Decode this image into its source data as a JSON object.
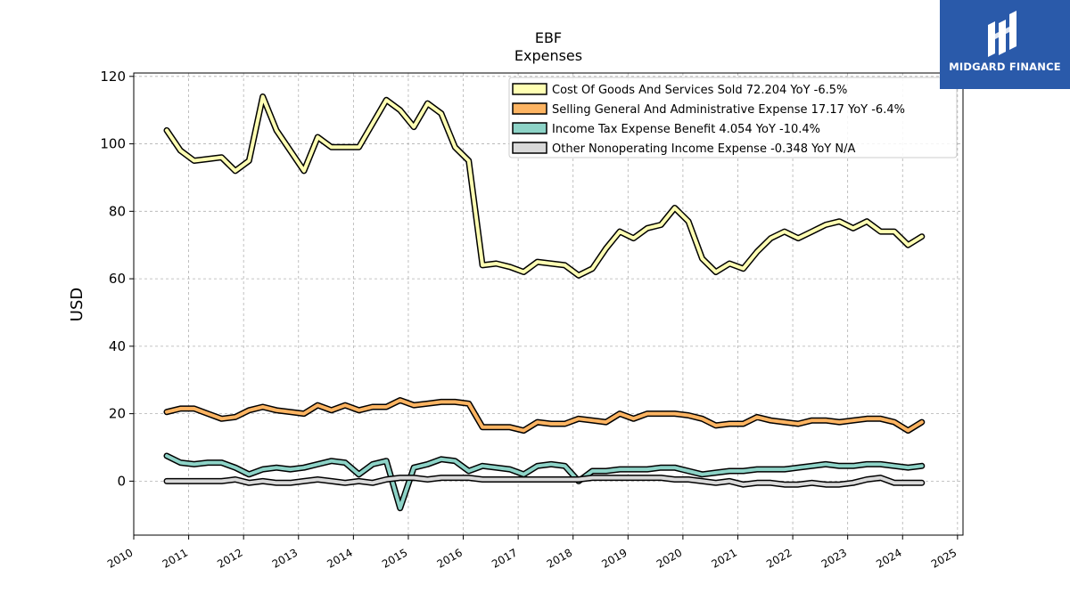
{
  "chart_data": {
    "type": "line",
    "title": "EBF",
    "subtitle": "Expenses",
    "xlabel": "",
    "ylabel": "USD",
    "xlim": [
      2010.0,
      2025.1
    ],
    "ylim": [
      -16,
      121
    ],
    "x_ticks": [
      "2010",
      "2011",
      "2012",
      "2013",
      "2014",
      "2015",
      "2016",
      "2017",
      "2018",
      "2019",
      "2020",
      "2021",
      "2022",
      "2023",
      "2024",
      "2025"
    ],
    "y_ticks": [
      "0",
      "20",
      "40",
      "60",
      "80",
      "100",
      "120"
    ],
    "grid": true,
    "legend_position": "top-right",
    "x": [
      2010.6,
      2010.85,
      2011.1,
      2011.35,
      2011.6,
      2011.85,
      2012.1,
      2012.35,
      2012.6,
      2012.85,
      2013.1,
      2013.35,
      2013.6,
      2013.85,
      2014.1,
      2014.35,
      2014.6,
      2014.85,
      2015.1,
      2015.35,
      2015.6,
      2015.85,
      2016.1,
      2016.35,
      2016.6,
      2016.85,
      2017.1,
      2017.35,
      2017.6,
      2017.85,
      2018.1,
      2018.35,
      2018.6,
      2018.85,
      2019.1,
      2019.35,
      2019.6,
      2019.85,
      2020.1,
      2020.35,
      2020.6,
      2020.85,
      2021.1,
      2021.35,
      2021.6,
      2021.85,
      2022.1,
      2022.35,
      2022.6,
      2022.85,
      2023.1,
      2023.35,
      2023.6,
      2023.85,
      2024.1,
      2024.35
    ],
    "series": [
      {
        "name": "Cost Of Goods And Services Sold  72.204 YoY -6.5%",
        "color": "#ffffb3",
        "values": [
          104,
          98,
          95,
          95.5,
          96,
          92,
          95,
          114,
          104,
          98,
          92,
          102,
          99,
          99,
          99,
          106,
          113,
          110,
          105,
          112,
          109,
          99,
          95,
          64,
          64.5,
          63.5,
          62,
          65,
          64.5,
          64,
          61,
          63,
          69,
          74,
          72,
          75,
          76,
          81,
          77,
          66,
          62,
          64.5,
          63,
          68,
          72,
          74,
          72,
          74,
          76,
          77,
          75,
          77,
          74,
          74,
          70,
          72.5
        ]
      },
      {
        "name": "Selling General And Administrative Expense  17.17 YoY -6.4%",
        "color": "#fdb462",
        "values": [
          20.5,
          21.5,
          21.5,
          20,
          18.5,
          19,
          21,
          22,
          21,
          20.5,
          20,
          22.5,
          21,
          22.5,
          21,
          22,
          22,
          24,
          22.5,
          23,
          23.5,
          23.5,
          23,
          16,
          16,
          16,
          15,
          17.5,
          17,
          17,
          18.5,
          18,
          17.5,
          20,
          18.5,
          20,
          20,
          20,
          19.5,
          18.5,
          16.5,
          17,
          17,
          19,
          18,
          17.5,
          17,
          18,
          18,
          17.5,
          18,
          18.5,
          18.5,
          17.5,
          15,
          17.5
        ]
      },
      {
        "name": "Income Tax Expense Benefit  4.054 YoY -10.4%",
        "color": "#8dd3c7",
        "values": [
          7.5,
          5.5,
          5,
          5.5,
          5.5,
          4,
          2,
          3.5,
          4,
          3.5,
          4,
          5,
          6,
          5.5,
          2,
          5,
          6,
          -8,
          4,
          5,
          6.5,
          6,
          3,
          4.5,
          4,
          3.5,
          2,
          4.5,
          5,
          4.5,
          0,
          3,
          3,
          3.5,
          3.5,
          3.5,
          4,
          4,
          3,
          2,
          2.5,
          3,
          3,
          3.5,
          3.5,
          3.5,
          4,
          4.5,
          5,
          4.5,
          4.5,
          5,
          5,
          4.5,
          4,
          4.5
        ]
      },
      {
        "name": "Other Nonoperating Income Expense  -0.348 YoY N/A",
        "color": "#d9d9d9",
        "values": [
          0,
          0,
          0,
          0,
          0,
          0.5,
          -0.5,
          0,
          -0.5,
          -0.5,
          0,
          0.5,
          0,
          -0.5,
          0,
          -0.5,
          0.5,
          1,
          1,
          0.5,
          1,
          1,
          1,
          0.5,
          0.5,
          0.5,
          0.5,
          0.5,
          0.5,
          0.5,
          0.5,
          1,
          1,
          1,
          1,
          1,
          1,
          0.5,
          0.5,
          0,
          -0.5,
          0,
          -1,
          -0.5,
          -0.5,
          -1,
          -1,
          -0.5,
          -1,
          -1,
          -0.5,
          0.5,
          1,
          -0.5,
          -0.5,
          -0.5
        ]
      }
    ]
  },
  "logo": {
    "text": "MIDGARD FINANCE",
    "color": "#2a5aaa"
  }
}
